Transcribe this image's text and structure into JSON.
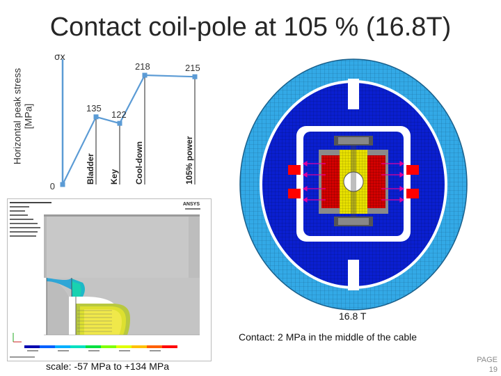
{
  "slide": {
    "title": "Contact coil-pole at 105 % (16.8T)",
    "page_label": "PAGE",
    "page_number": "19"
  },
  "chart_data": {
    "type": "line",
    "categories": [
      "",
      "Bladder",
      "Key",
      "Cool-down",
      "105% power"
    ],
    "values": [
      0,
      135,
      122,
      218,
      215
    ],
    "data_labels": [
      "0",
      "135",
      "122",
      "218",
      "215"
    ],
    "ylabel": "Horizontal peak stress [MPa]",
    "series_symbol": "σx",
    "ylim": [
      0,
      250
    ],
    "grid": false,
    "line_color": "#5b9bd5"
  },
  "fea_panel": {
    "brand": "ANSYS",
    "scale_text": "scale: -57 MPa to +134 MPa"
  },
  "magnet_panel": {
    "field_text": "16.8 T",
    "contact_text": "Contact: 2 MPa in the middle of the cable"
  }
}
